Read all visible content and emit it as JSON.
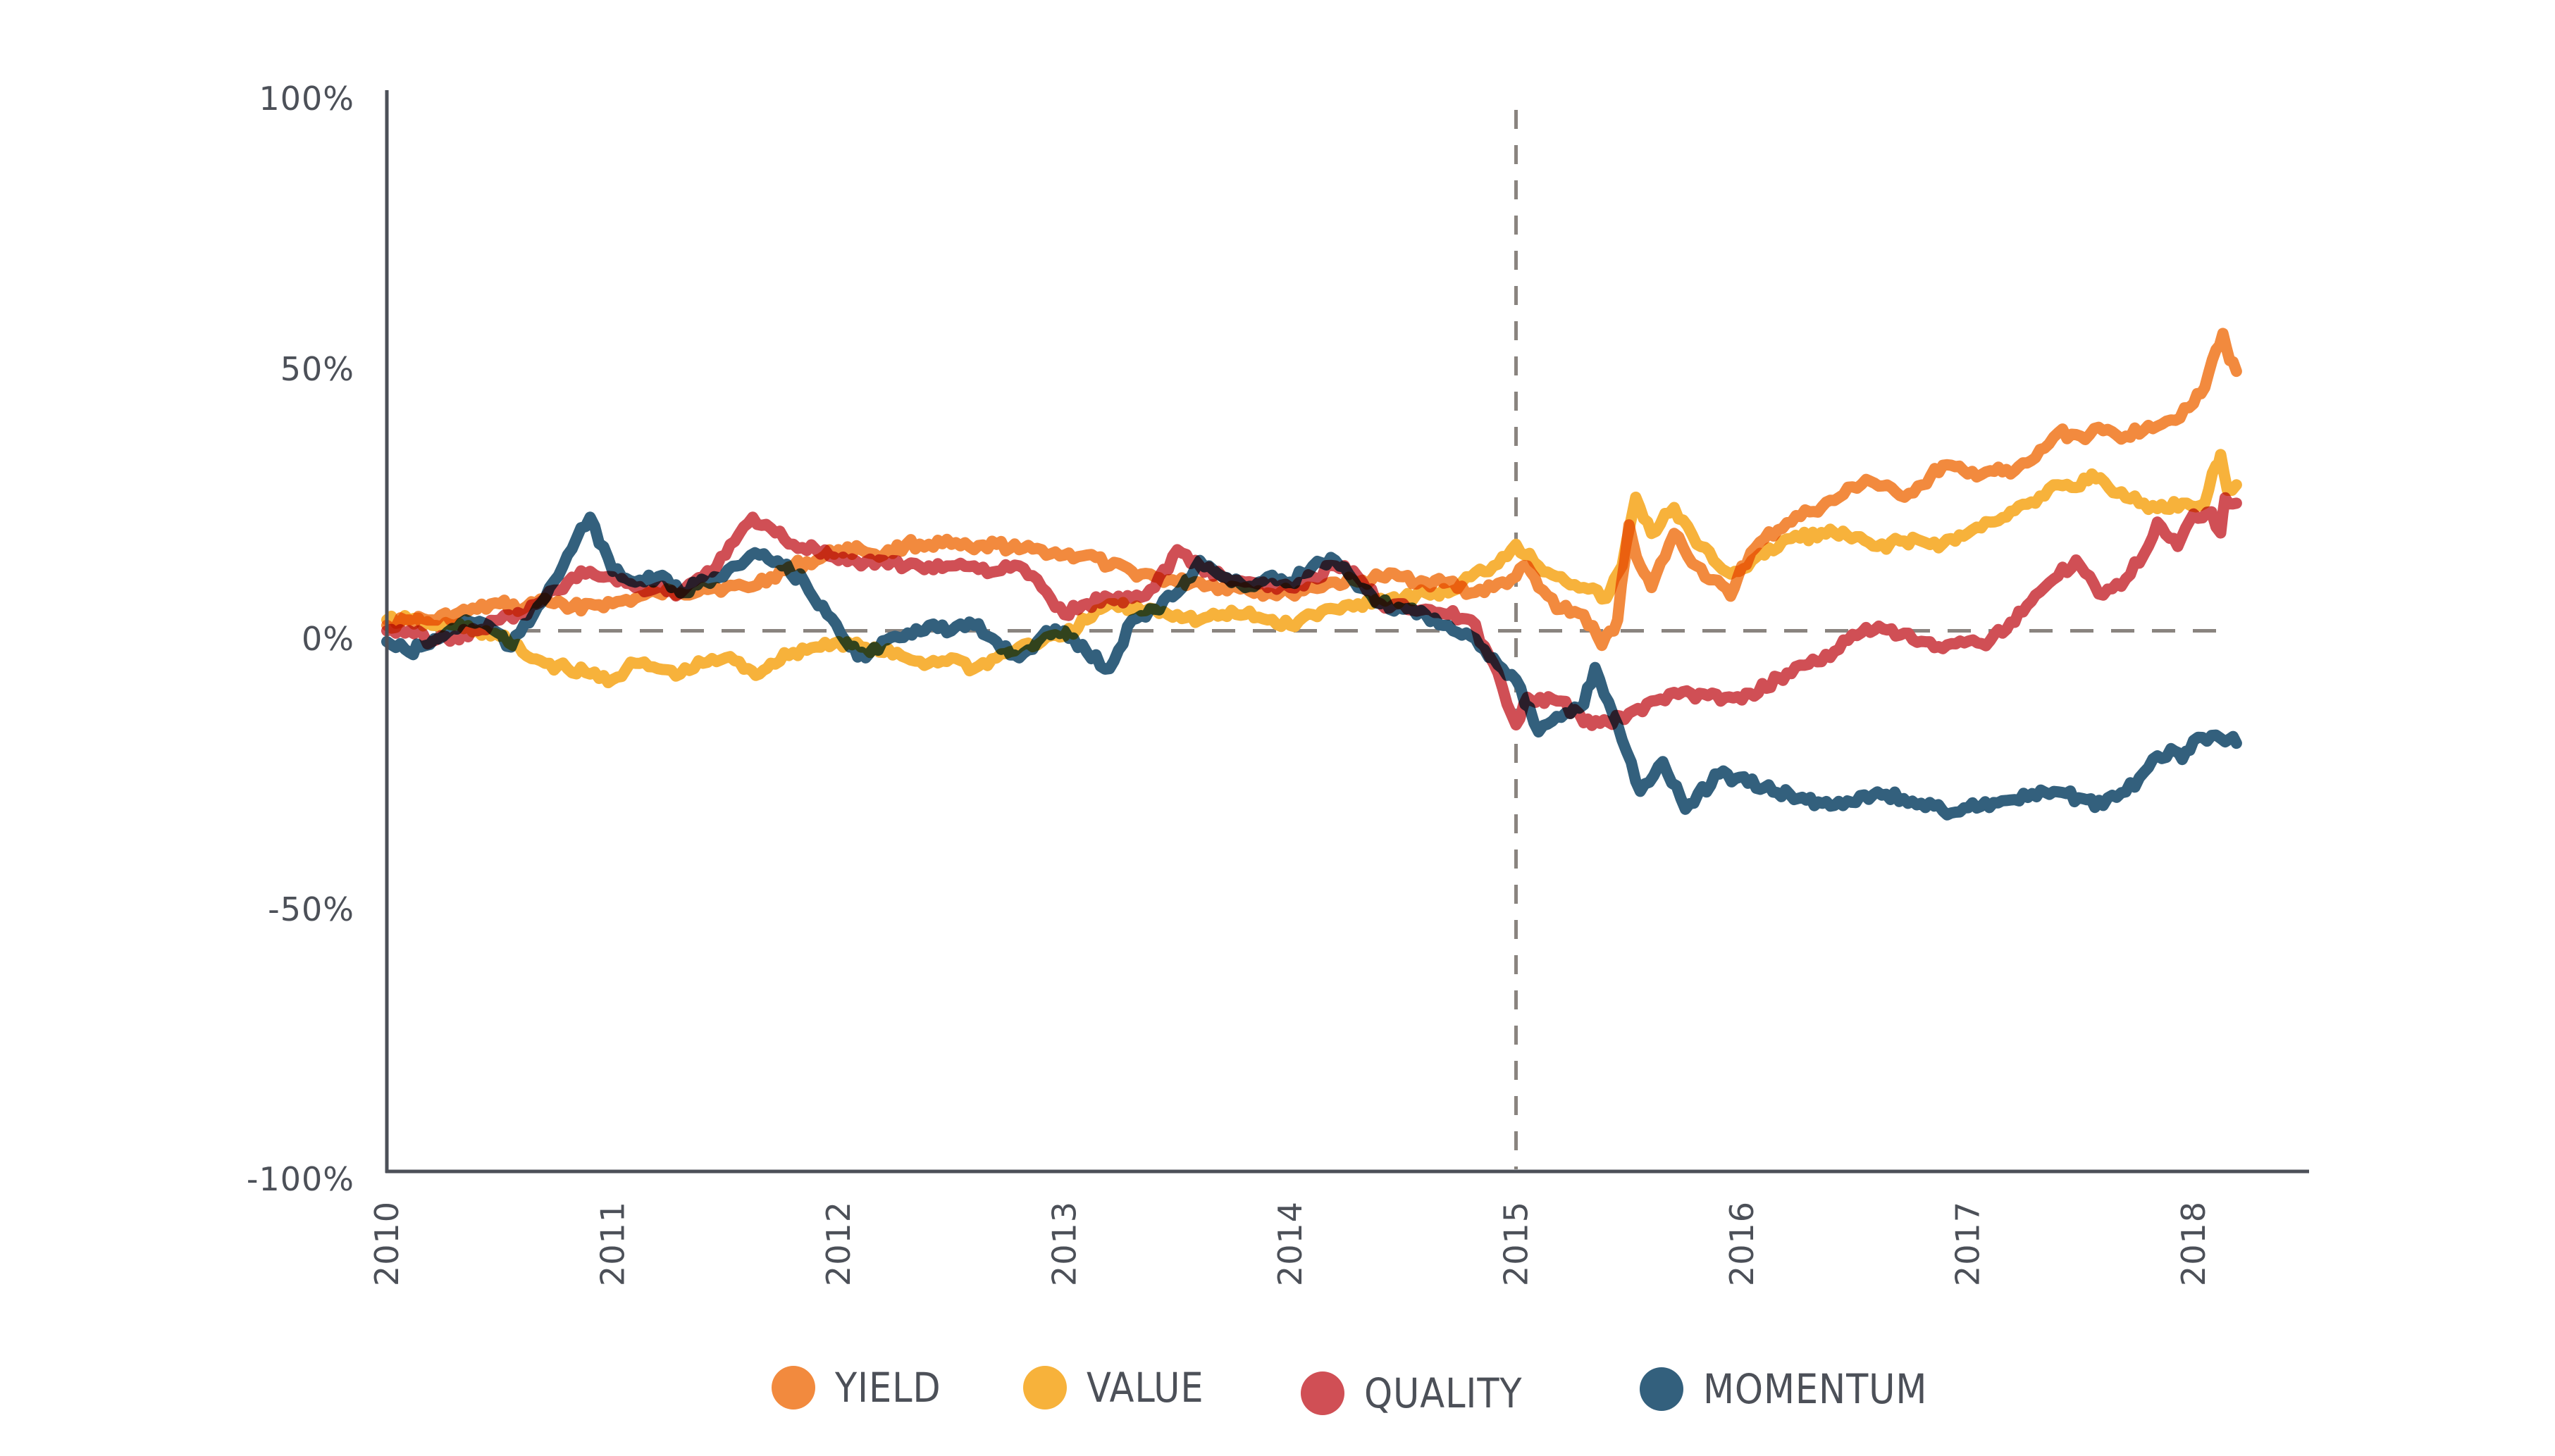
{
  "chart_data": {
    "type": "line",
    "title": "",
    "xlabel": "",
    "ylabel": "",
    "xlim": [
      2010,
      2018.55
    ],
    "ylim": [
      -100,
      100
    ],
    "y_ticks": [
      {
        "value": 100,
        "label": "100%"
      },
      {
        "value": 50,
        "label": "50%"
      },
      {
        "value": 0,
        "label": "0%"
      },
      {
        "value": -50,
        "label": "-50%"
      },
      {
        "value": -100,
        "label": "-100%"
      }
    ],
    "x_ticks": [
      {
        "value": 2010,
        "label": "2010"
      },
      {
        "value": 2011,
        "label": "2011"
      },
      {
        "value": 2012,
        "label": "2012"
      },
      {
        "value": 2013,
        "label": "2013"
      },
      {
        "value": 2014,
        "label": "2014"
      },
      {
        "value": 2015,
        "label": "2015"
      },
      {
        "value": 2016,
        "label": "2016"
      },
      {
        "value": 2017,
        "label": "2017"
      },
      {
        "value": 2018,
        "label": "2018"
      }
    ],
    "reference_lines": [
      {
        "orientation": "horizontal",
        "value": 0,
        "style": "dashed",
        "color": "#8A847F"
      },
      {
        "orientation": "vertical",
        "value": 2015,
        "style": "dashed",
        "color": "#8A847F"
      }
    ],
    "grid": false,
    "legend_position": "bottom",
    "series": [
      {
        "name": "YIELD",
        "color": "#F28A3E",
        "x": [
          2010.0,
          2010.1,
          2010.2,
          2010.3,
          2010.4,
          2010.5,
          2010.6,
          2010.7,
          2010.8,
          2010.9,
          2011.0,
          2011.1,
          2011.2,
          2011.3,
          2011.4,
          2011.5,
          2011.6,
          2011.7,
          2011.8,
          2011.9,
          2012.0,
          2012.1,
          2012.2,
          2012.3,
          2012.4,
          2012.5,
          2012.6,
          2012.7,
          2012.8,
          2012.9,
          2013.0,
          2013.1,
          2013.2,
          2013.3,
          2013.4,
          2013.5,
          2013.6,
          2013.7,
          2013.8,
          2013.9,
          2014.0,
          2014.1,
          2014.2,
          2014.3,
          2014.4,
          2014.5,
          2014.6,
          2014.7,
          2014.8,
          2014.9,
          2015.0,
          2015.05,
          2015.1,
          2015.2,
          2015.3,
          2015.38,
          2015.45,
          2015.5,
          2015.55,
          2015.6,
          2015.7,
          2015.8,
          2015.95,
          2016.0,
          2016.1,
          2016.2,
          2016.3,
          2016.41,
          2016.55,
          2016.7,
          2016.8,
          2016.89,
          2017.0,
          2017.1,
          2017.19,
          2017.3,
          2017.4,
          2017.5,
          2017.6,
          2017.7,
          2017.8,
          2017.9,
          2018.0,
          2018.05,
          2018.1,
          2018.13,
          2018.16,
          2018.19
        ],
        "values": [
          1,
          2,
          2,
          3,
          4,
          5,
          4,
          6,
          4,
          5,
          5,
          6,
          7,
          7,
          8,
          8,
          8,
          10,
          12,
          13,
          15,
          15,
          14,
          16,
          16,
          16,
          15,
          16,
          15,
          15,
          14,
          14,
          12,
          11,
          10,
          9,
          9,
          8,
          8,
          7,
          7,
          8,
          9,
          9,
          10,
          10,
          9,
          9,
          7,
          8,
          10,
          12,
          8,
          4,
          3,
          -2.7,
          2,
          19.6,
          12,
          8,
          18,
          12,
          6.4,
          12,
          17,
          20,
          22,
          24.1,
          28,
          25,
          27,
          30.6,
          29,
          29.6,
          29,
          32,
          36.6,
          36,
          37,
          36,
          38,
          39,
          42,
          45,
          52,
          55,
          50,
          48
        ]
      },
      {
        "name": "VALUE",
        "color": "#F7B23B",
        "x": [
          2010.0,
          2010.1,
          2010.2,
          2010.3,
          2010.4,
          2010.5,
          2010.6,
          2010.7,
          2010.8,
          2010.9,
          2011.0,
          2011.1,
          2011.2,
          2011.3,
          2011.4,
          2011.5,
          2011.6,
          2011.65,
          2011.7,
          2011.8,
          2011.9,
          2012.0,
          2012.1,
          2012.2,
          2012.3,
          2012.4,
          2012.5,
          2012.6,
          2012.7,
          2012.8,
          2012.9,
          2013.0,
          2013.1,
          2013.2,
          2013.3,
          2013.4,
          2013.5,
          2013.6,
          2013.7,
          2013.8,
          2013.9,
          2014.0,
          2014.1,
          2014.2,
          2014.3,
          2014.4,
          2014.5,
          2014.6,
          2014.7,
          2014.8,
          2014.9,
          2015.0,
          2015.1,
          2015.2,
          2015.3,
          2015.4,
          2015.47,
          2015.53,
          2015.6,
          2015.7,
          2015.8,
          2015.95,
          2016.1,
          2016.2,
          2016.41,
          2016.6,
          2016.7,
          2016.89,
          2017.0,
          2017.1,
          2017.19,
          2017.3,
          2017.4,
          2017.48,
          2017.55,
          2017.7,
          2017.84,
          2017.95,
          2018.05,
          2018.1,
          2018.12,
          2018.15,
          2018.19
        ],
        "values": [
          2,
          2,
          1,
          1,
          0,
          -1,
          -4,
          -6,
          -7,
          -8,
          -9,
          -6,
          -7,
          -8,
          -6,
          -5,
          -7,
          -8,
          -6,
          -4,
          -3,
          -2,
          -3,
          -4,
          -5,
          -6,
          -5,
          -7,
          -5,
          -3,
          -2,
          -1,
          2,
          5,
          4,
          4,
          3,
          2,
          3,
          3,
          2,
          1,
          3,
          4,
          5,
          6,
          6,
          7,
          7,
          10,
          12,
          16,
          12,
          10,
          8,
          6,
          12,
          24.7,
          18,
          22.8,
          16,
          10.5,
          14,
          17,
          18.1,
          15.6,
          16.6,
          16.1,
          18,
          20.1,
          22.1,
          23.6,
          27,
          26.5,
          29,
          24.6,
          22.6,
          23.6,
          23.6,
          30.6,
          32.6,
          26,
          27
        ]
      },
      {
        "name": "QUALITY",
        "color": "#D04F55",
        "x": [
          2010.0,
          2010.1,
          2010.2,
          2010.3,
          2010.4,
          2010.5,
          2010.6,
          2010.7,
          2010.8,
          2010.9,
          2011.0,
          2011.1,
          2011.2,
          2011.3,
          2011.4,
          2011.5,
          2011.62,
          2011.7,
          2011.8,
          2011.9,
          2012.0,
          2012.1,
          2012.2,
          2012.3,
          2012.4,
          2012.5,
          2012.6,
          2012.7,
          2012.8,
          2012.9,
          2013.0,
          2013.1,
          2013.2,
          2013.3,
          2013.4,
          2013.5,
          2013.6,
          2013.7,
          2013.8,
          2013.9,
          2014.0,
          2014.1,
          2014.2,
          2014.3,
          2014.4,
          2014.5,
          2014.6,
          2014.7,
          2014.8,
          2014.9,
          2015.0,
          2015.05,
          2015.2,
          2015.3,
          2015.48,
          2015.6,
          2015.7,
          2015.85,
          2016.0,
          2016.2,
          2016.41,
          2016.55,
          2016.7,
          2016.89,
          2017.1,
          2017.19,
          2017.3,
          2017.4,
          2017.48,
          2017.6,
          2017.7,
          2017.8,
          2017.84,
          2017.93,
          2018.0,
          2018.08,
          2018.12,
          2018.14,
          2018.19
        ],
        "values": [
          0,
          0,
          -2,
          -1,
          0,
          2,
          3,
          6,
          9,
          11,
          10,
          8,
          8,
          7,
          10,
          14,
          21,
          19,
          16,
          15,
          13,
          12,
          13,
          12,
          12,
          12,
          12,
          11,
          12,
          8,
          3,
          5,
          6,
          6,
          8,
          15,
          12,
          10,
          9,
          8,
          8,
          10,
          12,
          10,
          5,
          5,
          4,
          3,
          2,
          -6,
          -17.4,
          -12.3,
          -13,
          -17,
          -16.4,
          -13,
          -11.4,
          -12,
          -12.8,
          -7.8,
          -3.8,
          0.6,
          -0.8,
          -3.3,
          -1.8,
          1.6,
          6.6,
          10.1,
          13.1,
          6.6,
          9.6,
          15.6,
          20.1,
          15.6,
          21.6,
          22,
          18.1,
          24.6,
          23.6
        ]
      },
      {
        "name": "MOMENTUM",
        "color": "#33607D",
        "x": [
          2010.0,
          2010.1,
          2010.15,
          2010.25,
          2010.35,
          2010.45,
          2010.55,
          2010.65,
          2010.72,
          2010.8,
          2010.9,
          2011.0,
          2011.1,
          2011.2,
          2011.3,
          2011.45,
          2011.55,
          2011.65,
          2011.75,
          2011.85,
          2011.95,
          2012.05,
          2012.12,
          2012.25,
          2012.4,
          2012.5,
          2012.6,
          2012.7,
          2012.8,
          2012.9,
          2013.0,
          2013.1,
          2013.2,
          2013.3,
          2013.4,
          2013.5,
          2013.6,
          2013.7,
          2013.8,
          2013.9,
          2014.0,
          2014.1,
          2014.2,
          2014.3,
          2014.4,
          2014.5,
          2014.6,
          2014.7,
          2014.8,
          2014.9,
          2015.0,
          2015.1,
          2015.2,
          2015.3,
          2015.35,
          2015.45,
          2015.55,
          2015.65,
          2015.75,
          2015.9,
          2016.1,
          2016.25,
          2016.41,
          2016.6,
          2016.89,
          2017.19,
          2017.4,
          2017.6,
          2017.7,
          2017.8,
          2017.9,
          2017.95,
          2018.0,
          2018.1,
          2018.16,
          2018.19
        ],
        "values": [
          -2,
          -4,
          -3,
          -1,
          2,
          1,
          -3,
          3,
          8,
          14,
          21,
          11,
          9,
          10,
          7,
          10,
          12,
          14,
          12,
          9,
          3,
          -3,
          -5,
          -1,
          1,
          0,
          1,
          -2,
          -5,
          -1,
          0,
          -4,
          -7,
          2,
          4,
          7,
          13,
          10,
          8,
          10,
          9,
          12,
          13,
          8,
          5,
          4,
          3,
          1,
          -1,
          -5,
          -9,
          -18.7,
          -16,
          -13.7,
          -6.8,
          -17.4,
          -29.7,
          -24.2,
          -33,
          -26.5,
          -29,
          -31,
          -32.3,
          -29.8,
          -33.3,
          -31.3,
          -29.8,
          -32.3,
          -29.8,
          -25.3,
          -21.8,
          -23.8,
          -20.3,
          -19.3,
          -20,
          -20.8
        ]
      }
    ]
  },
  "legend": {
    "items": [
      {
        "label": "YIELD",
        "color": "#F28A3E"
      },
      {
        "label": "VALUE",
        "color": "#F7B23B"
      },
      {
        "label": "QUALITY",
        "color": "#D04F55"
      },
      {
        "label": "MOMENTUM",
        "color": "#33607D"
      }
    ]
  }
}
